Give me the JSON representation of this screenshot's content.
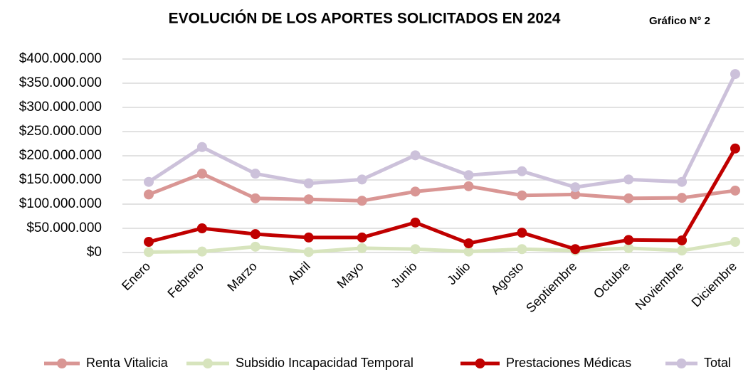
{
  "chart_data": {
    "type": "line",
    "title": "EVOLUCIÓN DE LOS APORTES SOLICITADOS EN 2024",
    "subtitle": "Gráfico N° 2",
    "categories": [
      "Enero",
      "Febrero",
      "Marzo",
      "Abril",
      "Mayo",
      "Junio",
      "Julio",
      "Agosto",
      "Septiembre",
      "Octubre",
      "Noviembre",
      "Diciembre"
    ],
    "series": [
      {
        "name": "Renta Vitalicia",
        "color": "#d99694",
        "values": [
          120000000,
          163000000,
          112000000,
          110000000,
          107000000,
          126000000,
          137000000,
          118000000,
          120000000,
          112000000,
          113000000,
          128000000
        ]
      },
      {
        "name": "Subsidio Incapacidad Temporal",
        "color": "#d7e4bd",
        "values": [
          1000000,
          2000000,
          12000000,
          1000000,
          9000000,
          7000000,
          2000000,
          7000000,
          4000000,
          9000000,
          4000000,
          22000000
        ]
      },
      {
        "name": "Prestaciones Médicas",
        "color": "#c00000",
        "values": [
          22000000,
          50000000,
          38000000,
          31000000,
          31000000,
          62000000,
          19000000,
          41000000,
          7000000,
          26000000,
          25000000,
          215000000
        ]
      },
      {
        "name": "Total",
        "color": "#ccc1da",
        "values": [
          146000000,
          218000000,
          163000000,
          143000000,
          151000000,
          201000000,
          160000000,
          168000000,
          135000000,
          151000000,
          146000000,
          369000000
        ]
      }
    ],
    "ylim": [
      0,
      400000000
    ],
    "yticks": [
      {
        "value": 0,
        "label": "$0"
      },
      {
        "value": 50000000,
        "label": "$50.000.000"
      },
      {
        "value": 100000000,
        "label": "$100.000.000"
      },
      {
        "value": 150000000,
        "label": "$150.000.000"
      },
      {
        "value": 200000000,
        "label": "$200.000.000"
      },
      {
        "value": 250000000,
        "label": "$250.000.000"
      },
      {
        "value": 300000000,
        "label": "$300.000.000"
      },
      {
        "value": 350000000,
        "label": "$350.000.000"
      },
      {
        "value": 400000000,
        "label": "$400.000.000"
      }
    ],
    "grid": true,
    "legend": "bottom"
  }
}
